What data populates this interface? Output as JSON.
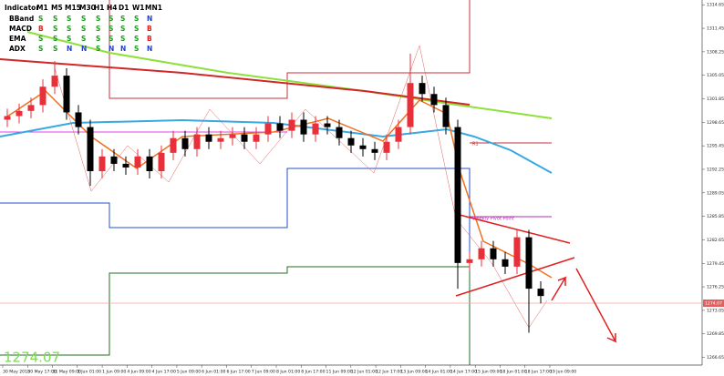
{
  "indicator_table": {
    "header": [
      "Indicator",
      "M1",
      "M5",
      "M15",
      "M30",
      "H1",
      "H4",
      "D1",
      "W1",
      "MN1"
    ],
    "rows": [
      [
        "BBand",
        "S",
        "S",
        "S",
        "S",
        "S",
        "S",
        "S",
        "S",
        "N"
      ],
      [
        "MACD",
        "B",
        "S",
        "S",
        "S",
        "S",
        "S",
        "S",
        "S",
        "B"
      ],
      [
        "EMA",
        "S",
        "S",
        "S",
        "S",
        "S",
        "S",
        "S",
        "S",
        "B"
      ],
      [
        "ADX",
        "S",
        "S",
        "N",
        "N",
        "S",
        "N",
        "N",
        "S",
        "N"
      ]
    ],
    "colors": {
      "S": "#1a9a1a",
      "B": "#e02020",
      "N": "#2040d0"
    }
  },
  "chart_data": {
    "type": "candlestick",
    "last_price": 1274.07,
    "up_color": "#e8303a",
    "down_color": "#000000",
    "ylim": [
      1265.6,
      1315.3
    ],
    "yticks": [
      1314.65,
      1311.45,
      1308.25,
      1305.05,
      1301.85,
      1298.65,
      1295.45,
      1292.25,
      1289.05,
      1285.85,
      1282.65,
      1279.45,
      1276.25,
      1273.05,
      1269.85,
      1266.65
    ],
    "open": [
      1299,
      1299.5,
      1300.2,
      1301,
      1303.5,
      1305,
      1300,
      1298,
      1292,
      1294,
      1293,
      1292.5,
      1294,
      1292,
      1294.5,
      1296.5,
      1295,
      1297,
      1296,
      1296.5,
      1297,
      1296,
      1297,
      1298.5,
      1297.5,
      1299,
      1297,
      1298.5,
      1298,
      1296.5,
      1295.5,
      1295,
      1294.5,
      1296,
      1298,
      1304,
      1302.5,
      1301,
      1298,
      1279.5,
      1280,
      1281.5,
      1280,
      1279,
      1283,
      1276
    ],
    "high": [
      1300.5,
      1301.2,
      1302,
      1304.5,
      1307,
      1306,
      1301,
      1299,
      1295,
      1295,
      1294,
      1295,
      1295,
      1295.5,
      1297.5,
      1297.5,
      1298,
      1298,
      1297.5,
      1298,
      1298,
      1298,
      1299.5,
      1299.5,
      1300,
      1300,
      1299.5,
      1299.5,
      1299,
      1297.5,
      1296.5,
      1296,
      1297,
      1299,
      1308,
      1305,
      1303.5,
      1302,
      1299,
      1281,
      1282.5,
      1282.5,
      1281,
      1284,
      1284,
      1277
    ],
    "low": [
      1298,
      1298.5,
      1299.2,
      1300,
      1302.5,
      1299,
      1297,
      1290,
      1291,
      1292,
      1291.5,
      1291.5,
      1291,
      1291,
      1293.5,
      1294,
      1294,
      1295,
      1295,
      1295.5,
      1295,
      1295,
      1296,
      1296.5,
      1296.5,
      1296,
      1296,
      1297,
      1295.5,
      1294.5,
      1294,
      1293.5,
      1293.5,
      1295,
      1297,
      1301.5,
      1300,
      1297,
      1276,
      1278.5,
      1279,
      1279,
      1278,
      1278,
      1270,
      1274
    ],
    "close": [
      1299.5,
      1300.2,
      1301,
      1303.5,
      1305,
      1300,
      1298,
      1292,
      1294,
      1293,
      1292.5,
      1294,
      1292,
      1294.5,
      1296.5,
      1295,
      1297,
      1296,
      1296.5,
      1297,
      1296,
      1297,
      1298.5,
      1297.5,
      1299,
      1297,
      1298.5,
      1298,
      1296.5,
      1295.5,
      1295,
      1294.5,
      1296,
      1298,
      1304,
      1302.5,
      1301,
      1298,
      1279.5,
      1280,
      1281.5,
      1280,
      1279,
      1283,
      1276,
      1275
    ],
    "time_labels": [
      "30 May 2018",
      "30 May 17:00",
      "31 May 09:00",
      "1 Jun 01:00",
      "1 Jun 09:00",
      "4 Jun 09:00",
      "4 Jun 17:00",
      "5 Jun 09:00",
      "6 Jun 01:00",
      "6 Jun 17:00",
      "7 Jun 09:00",
      "8 Jun 01:00",
      "8 Jun 17:00",
      "11 Jun 09:00",
      "12 Jun 01:00",
      "12 Jun 17:00",
      "13 Jun 09:00",
      "14 Jun 01:00",
      "14 Jun 17:00",
      "15 Jun 09:00",
      "18 Jun 01:00",
      "18 Jun 17:00",
      "19 Jun 09:00"
    ],
    "annotations": [
      "R1",
      "Weekly Pivot Point"
    ]
  }
}
